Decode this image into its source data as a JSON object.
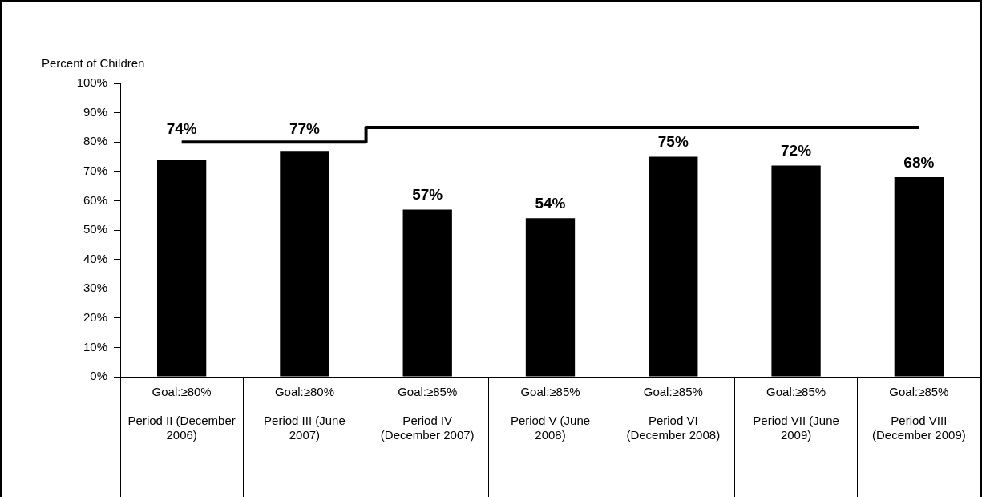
{
  "chart_data": {
    "type": "bar",
    "ylabel": "Percent of Children",
    "categories": [
      "Goal:≥80%\nPeriod II (December 2006)",
      "Goal:≥80%\nPeriod III (June 2007)",
      "Goal:≥85%\nPeriod IV (December 2007)",
      "Goal:≥85%\nPeriod V (June 2008)",
      "Goal:≥85%\nPeriod VI (December 2008)",
      "Goal:≥85%\nPeriod VII (June 2009)",
      "Goal:≥85%\nPeriod VIII (December 2009)"
    ],
    "series": [
      {
        "type": "bar",
        "color": "#000000",
        "values": [
          74,
          77,
          57,
          54,
          75,
          72,
          68
        ],
        "value_labels": [
          "74%",
          "77%",
          "57%",
          "54%",
          "75%",
          "72%",
          "68%"
        ]
      },
      {
        "type": "step",
        "color": "#000000",
        "values": [
          80,
          80,
          85,
          85,
          85,
          85,
          85
        ]
      }
    ],
    "ylim": [
      0,
      100
    ],
    "yticks": [
      {
        "value": 0,
        "label": "0%"
      },
      {
        "value": 10,
        "label": "10%"
      },
      {
        "value": 20,
        "label": "20%"
      },
      {
        "value": 30,
        "label": "30%"
      },
      {
        "value": 40,
        "label": "40%"
      },
      {
        "value": 50,
        "label": "50%"
      },
      {
        "value": 60,
        "label": "60%"
      },
      {
        "value": 70,
        "label": "70%"
      },
      {
        "value": 80,
        "label": "80%"
      },
      {
        "value": 90,
        "label": "90%"
      },
      {
        "value": 100,
        "label": "100%"
      }
    ],
    "grid": false,
    "legend": false
  }
}
